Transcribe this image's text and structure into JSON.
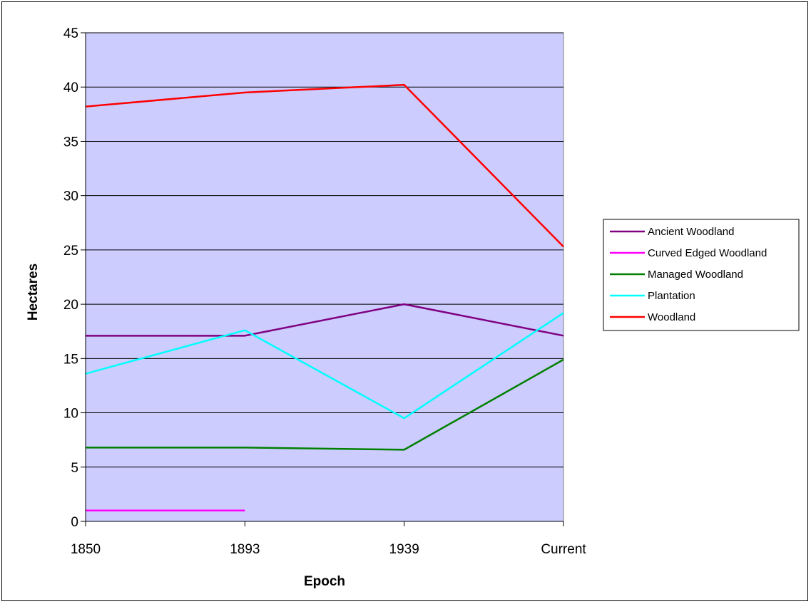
{
  "chart_data": {
    "type": "line",
    "title": "",
    "xlabel": "Epoch",
    "ylabel": "Hectares",
    "categories": [
      "1850",
      "1893",
      "1939",
      "Current"
    ],
    "ylim": [
      0,
      45
    ],
    "yticks": [
      0,
      5,
      10,
      15,
      20,
      25,
      30,
      35,
      40,
      45
    ],
    "grid": true,
    "legend_position": "right",
    "plot_background": "#ccccff",
    "series": [
      {
        "name": "Ancient Woodland",
        "color": "#800080",
        "values": [
          17.1,
          17.1,
          20.0,
          17.1
        ]
      },
      {
        "name": "Curved Edged Woodland",
        "color": "#ff00ff",
        "values": [
          1.0,
          1.0,
          null,
          null
        ]
      },
      {
        "name": "Managed Woodland",
        "color": "#008000",
        "values": [
          6.8,
          6.8,
          6.6,
          14.9
        ]
      },
      {
        "name": "Plantation",
        "color": "#00ffff",
        "values": [
          13.6,
          17.6,
          9.5,
          19.2
        ]
      },
      {
        "name": "Woodland",
        "color": "#ff0000",
        "values": [
          38.2,
          39.5,
          40.2,
          25.3
        ]
      }
    ]
  }
}
